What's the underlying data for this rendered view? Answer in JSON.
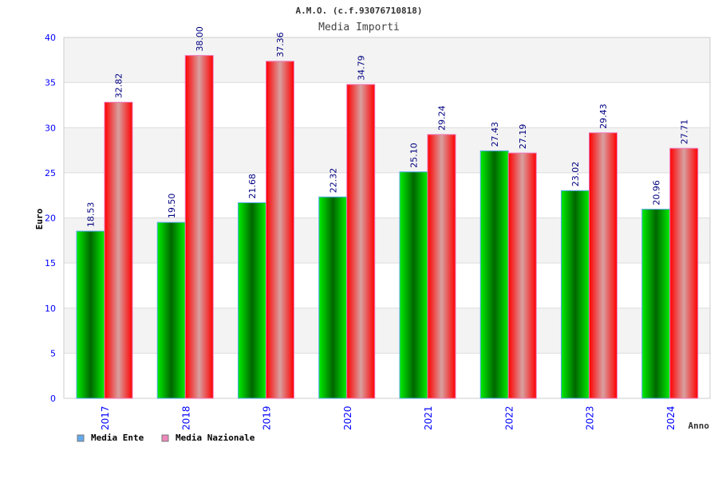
{
  "chart_data": {
    "type": "bar",
    "title": "A.M.O. (c.f.93076710818)",
    "subtitle": "Media Importi",
    "xlabel": "Anno",
    "ylabel": "Euro",
    "ylim": [
      0,
      40
    ],
    "yticks": [
      "0",
      "5",
      "10",
      "15",
      "20",
      "25",
      "30",
      "35",
      "40"
    ],
    "categories": [
      "2017",
      "2018",
      "2019",
      "2020",
      "2021",
      "2022",
      "2023",
      "2024"
    ],
    "series": [
      {
        "name": "Media Ente",
        "color": "#00cc00",
        "legend_color": "#66aaee",
        "values": [
          18.53,
          19.5,
          21.68,
          22.32,
          25.1,
          27.43,
          23.02,
          20.96
        ],
        "labels": [
          "18.53",
          "19.50",
          "21.68",
          "22.32",
          "25.10",
          "27.43",
          "23.02",
          "20.96"
        ]
      },
      {
        "name": "Media Nazionale",
        "color": "#ff0000",
        "legend_color": "#ee88bb",
        "values": [
          32.82,
          38.0,
          37.36,
          34.79,
          29.24,
          27.19,
          29.43,
          27.71
        ],
        "labels": [
          "32.82",
          "38.00",
          "37.36",
          "34.79",
          "29.24",
          "27.19",
          "29.43",
          "27.71"
        ]
      }
    ],
    "grid": true,
    "legend_position": "bottom-left"
  }
}
